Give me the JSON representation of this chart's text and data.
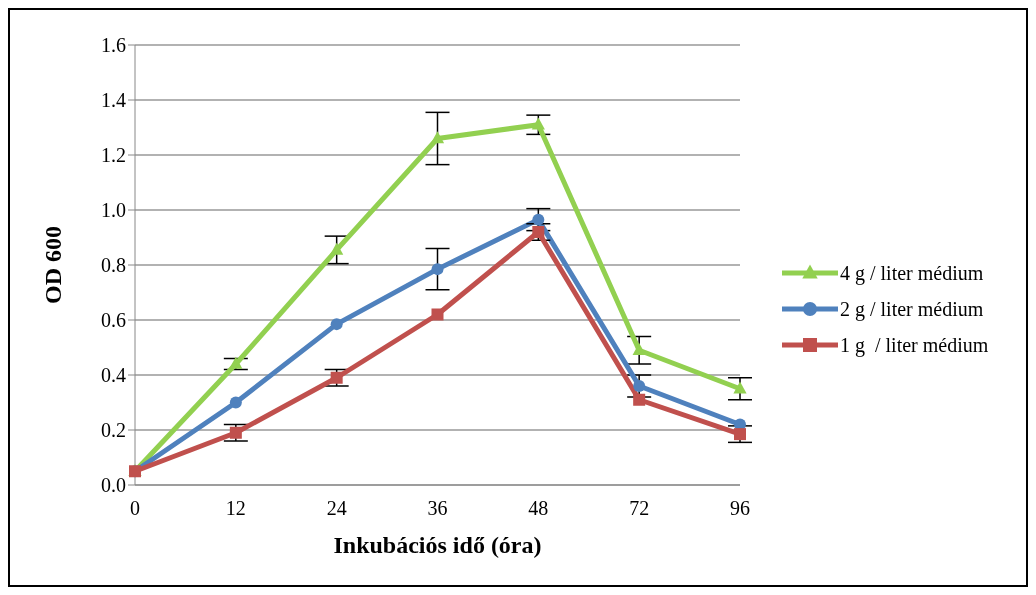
{
  "chart_data": {
    "type": "line",
    "xlabel": "Inkubációs idő (óra)",
    "ylabel": "OD 600",
    "categories": [
      "0",
      "12",
      "24",
      "36",
      "48",
      "72",
      "96"
    ],
    "series": [
      {
        "name": "4 g / liter médium",
        "color": "#92d050",
        "marker": "triangle",
        "values": [
          0.05,
          0.44,
          0.855,
          1.26,
          1.31,
          0.49,
          0.35
        ],
        "errors": [
          null,
          0.02,
          0.05,
          0.095,
          0.035,
          0.05,
          0.04
        ]
      },
      {
        "name": "2 g / liter médium",
        "color": "#4f81bd",
        "marker": "circle",
        "values": [
          0.05,
          0.3,
          0.585,
          0.785,
          0.965,
          0.36,
          0.22
        ],
        "errors": [
          null,
          null,
          null,
          0.075,
          0.04,
          0.04,
          null
        ]
      },
      {
        "name": "1 g  / liter médium",
        "color": "#c0504d",
        "marker": "square",
        "values": [
          0.05,
          0.19,
          0.39,
          0.62,
          0.92,
          0.31,
          0.185
        ],
        "errors": [
          null,
          0.03,
          0.03,
          null,
          0.03,
          null,
          0.03
        ]
      }
    ],
    "ylim": [
      0,
      1.6
    ],
    "yticks": [
      {
        "value": 0,
        "label": "0.0"
      },
      0.2,
      0.4,
      0.6,
      0.8,
      {
        "value": 1,
        "label": "1.0"
      },
      1.2,
      1.4,
      1.6
    ],
    "grid": "y",
    "legend": "right",
    "line_style": "solid"
  }
}
